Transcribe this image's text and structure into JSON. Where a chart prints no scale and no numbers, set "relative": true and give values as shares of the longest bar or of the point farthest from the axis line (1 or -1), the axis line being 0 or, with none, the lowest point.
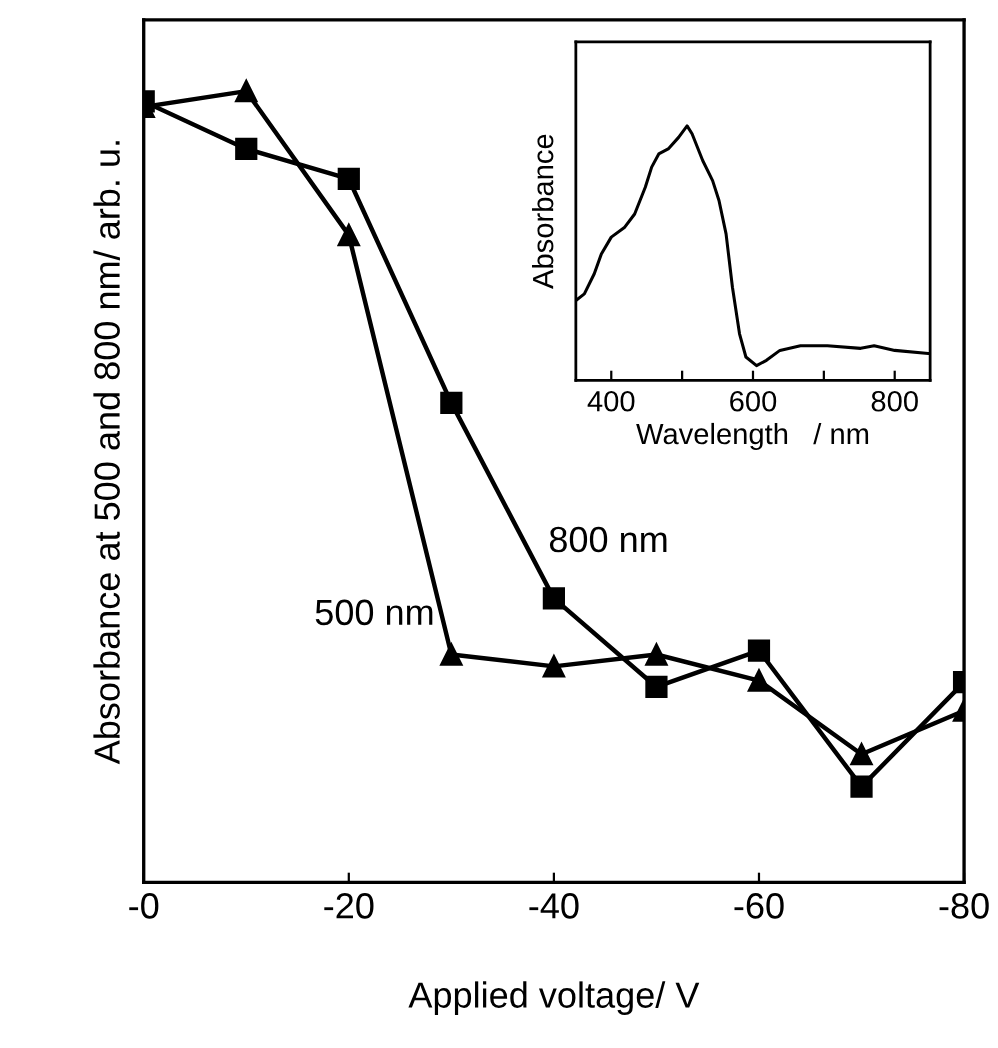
{
  "chart_data": [
    {
      "type": "line",
      "relative": true,
      "xlabel": "Applied voltage/ V",
      "ylabel": "Absorbance at 500 and 800 nm/ arb. u.",
      "xlim": [
        0,
        -80
      ],
      "xticks": [
        {
          "value": 0,
          "label": "-0"
        },
        {
          "value": -20,
          "label": "-20"
        },
        {
          "value": -40,
          "label": "-40"
        },
        {
          "value": -60,
          "label": "-60"
        },
        {
          "value": -80,
          "label": "-80"
        }
      ],
      "x": [
        0,
        -10,
        -20,
        -30,
        -40,
        -50,
        -60,
        -70,
        -80
      ],
      "series": [
        {
          "name": "800 nm",
          "color": "#000000",
          "marker": "square",
          "values": [
            0.987,
            0.927,
            0.889,
            0.606,
            0.359,
            0.247,
            0.293,
            0.121,
            0.253
          ]
        },
        {
          "name": "500 nm",
          "color": "#000000",
          "marker": "triangle",
          "values": [
            0.98,
            1,
            0.818,
            0.288,
            0.273,
            0.288,
            0.255,
            0.162,
            0.217
          ]
        }
      ]
    },
    {
      "type": "line",
      "relative": true,
      "xlabel": "Wavelength   / nm",
      "ylabel": "Absorbance",
      "xlim": [
        350,
        850
      ],
      "xticks": [
        400,
        {
          "value": 500,
          "label": null
        },
        600,
        {
          "value": 700,
          "label": null
        },
        800
      ],
      "series": [
        {
          "color": "#000000",
          "x": [
            350,
            362,
            376,
            386,
            400,
            419,
            433,
            448,
            457,
            467,
            481,
            495,
            507,
            514,
            529,
            543,
            552,
            562,
            571,
            581,
            590,
            605,
            619,
            638,
            667,
            705,
            752,
            771,
            800,
            850
          ],
          "values": [
            0.314,
            0.34,
            0.419,
            0.497,
            0.563,
            0.602,
            0.654,
            0.759,
            0.838,
            0.89,
            0.911,
            0.955,
            1,
            0.969,
            0.864,
            0.785,
            0.707,
            0.576,
            0.366,
            0.183,
            0.092,
            0.058,
            0.079,
            0.118,
            0.136,
            0.136,
            0.126,
            0.136,
            0.118,
            0.105
          ]
        }
      ]
    }
  ]
}
